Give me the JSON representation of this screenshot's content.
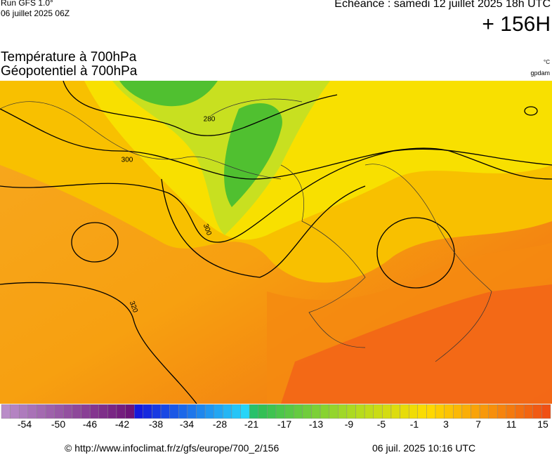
{
  "header": {
    "run": "Run GFS 1.0°",
    "run_date": "06 juillet 2025 06Z",
    "forecast": "Echéance : samedi 12 juillet 2025 18h UTC",
    "lead_time": "+ 156H"
  },
  "title": {
    "line1": "Température à 700hPa",
    "line2": "Géopotentiel à 700hPa",
    "unit_temperature": "°C",
    "unit_geopotential": "gpdam"
  },
  "map": {
    "contour_labels": [
      "280",
      "300",
      "300",
      "320"
    ]
  },
  "scale": {
    "labels": [
      "-54",
      "-50",
      "-46",
      "-42",
      "-38",
      "-34",
      "-28",
      "-21",
      "-17",
      "-13",
      "-9",
      "-5",
      "-1",
      "3",
      "7",
      "11",
      "15"
    ]
  },
  "footer": {
    "source": "© http://www.infoclimat.fr/z/gfs/europe/700_2/156",
    "generated": "06 juil. 2025 10:16 UTC"
  }
}
